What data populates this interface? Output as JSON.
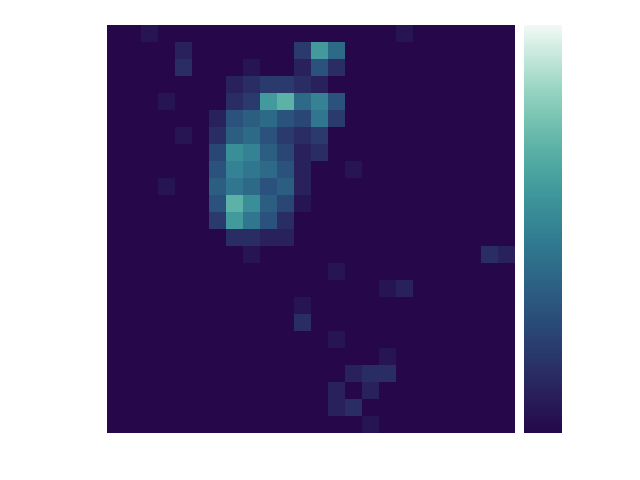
{
  "chart_data": {
    "type": "heatmap",
    "tick_labels": false,
    "colorbar_range": [
      0,
      1
    ],
    "z": [
      [
        0,
        0,
        0.05,
        0,
        0,
        0,
        0,
        0,
        0,
        0,
        0,
        0,
        0,
        0,
        0,
        0,
        0,
        0.05,
        0,
        0,
        0,
        0,
        0,
        0
      ],
      [
        0,
        0,
        0,
        0,
        0.1,
        0,
        0,
        0,
        0,
        0,
        0,
        0.2,
        0.6,
        0.4,
        0,
        0,
        0,
        0,
        0,
        0,
        0,
        0,
        0,
        0
      ],
      [
        0,
        0,
        0,
        0,
        0.15,
        0,
        0,
        0,
        0.05,
        0,
        0,
        0.1,
        0.3,
        0.15,
        0,
        0,
        0,
        0,
        0,
        0,
        0,
        0,
        0,
        0
      ],
      [
        0,
        0,
        0,
        0,
        0,
        0,
        0,
        0.1,
        0.15,
        0.2,
        0.2,
        0.15,
        0.1,
        0,
        0,
        0,
        0,
        0,
        0,
        0,
        0,
        0,
        0,
        0
      ],
      [
        0,
        0,
        0,
        0.05,
        0,
        0,
        0,
        0.15,
        0.2,
        0.6,
        0.7,
        0.4,
        0.5,
        0.3,
        0,
        0,
        0,
        0,
        0,
        0,
        0,
        0,
        0,
        0
      ],
      [
        0,
        0,
        0,
        0,
        0,
        0,
        0.1,
        0.3,
        0.35,
        0.4,
        0.3,
        0.25,
        0.45,
        0.2,
        0,
        0,
        0,
        0,
        0,
        0,
        0,
        0,
        0,
        0
      ],
      [
        0,
        0,
        0,
        0,
        0.05,
        0,
        0.15,
        0.35,
        0.4,
        0.3,
        0.2,
        0.15,
        0.2,
        0,
        0,
        0,
        0,
        0,
        0,
        0,
        0,
        0,
        0,
        0
      ],
      [
        0,
        0,
        0,
        0,
        0,
        0,
        0.25,
        0.55,
        0.5,
        0.35,
        0.25,
        0.1,
        0.15,
        0,
        0,
        0,
        0,
        0,
        0,
        0,
        0,
        0,
        0,
        0
      ],
      [
        0,
        0,
        0,
        0,
        0,
        0,
        0.3,
        0.5,
        0.45,
        0.4,
        0.3,
        0.1,
        0,
        0,
        0.05,
        0,
        0,
        0,
        0,
        0,
        0,
        0,
        0,
        0
      ],
      [
        0,
        0,
        0,
        0.05,
        0,
        0,
        0.35,
        0.45,
        0.4,
        0.3,
        0.35,
        0.1,
        0,
        0,
        0,
        0,
        0,
        0,
        0,
        0,
        0,
        0,
        0,
        0
      ],
      [
        0,
        0,
        0,
        0,
        0,
        0,
        0.3,
        0.7,
        0.55,
        0.35,
        0.25,
        0.05,
        0,
        0,
        0,
        0,
        0,
        0,
        0,
        0,
        0,
        0,
        0,
        0
      ],
      [
        0,
        0,
        0,
        0,
        0,
        0,
        0.2,
        0.6,
        0.45,
        0.3,
        0.15,
        0,
        0,
        0,
        0,
        0,
        0,
        0,
        0,
        0,
        0,
        0,
        0,
        0
      ],
      [
        0,
        0,
        0,
        0,
        0,
        0,
        0,
        0.15,
        0.15,
        0.1,
        0.1,
        0,
        0,
        0,
        0,
        0,
        0,
        0,
        0,
        0,
        0,
        0,
        0,
        0
      ],
      [
        0,
        0,
        0,
        0,
        0,
        0,
        0,
        0,
        0.05,
        0,
        0,
        0,
        0,
        0,
        0,
        0,
        0,
        0,
        0,
        0,
        0,
        0,
        0.15,
        0.1
      ],
      [
        0,
        0,
        0,
        0,
        0,
        0,
        0,
        0,
        0,
        0,
        0,
        0,
        0,
        0.05,
        0,
        0,
        0,
        0,
        0,
        0,
        0,
        0,
        0,
        0
      ],
      [
        0,
        0,
        0,
        0,
        0,
        0,
        0,
        0,
        0,
        0,
        0,
        0,
        0,
        0,
        0,
        0,
        0.05,
        0.1,
        0,
        0,
        0,
        0,
        0,
        0
      ],
      [
        0,
        0,
        0,
        0,
        0,
        0,
        0,
        0,
        0,
        0,
        0,
        0.05,
        0,
        0,
        0,
        0,
        0,
        0,
        0,
        0,
        0,
        0,
        0,
        0
      ],
      [
        0,
        0,
        0,
        0,
        0,
        0,
        0,
        0,
        0,
        0,
        0,
        0.15,
        0,
        0,
        0,
        0,
        0,
        0,
        0,
        0,
        0,
        0,
        0,
        0
      ],
      [
        0,
        0,
        0,
        0,
        0,
        0,
        0,
        0,
        0,
        0,
        0,
        0,
        0,
        0.05,
        0,
        0,
        0,
        0,
        0,
        0,
        0,
        0,
        0,
        0
      ],
      [
        0,
        0,
        0,
        0,
        0,
        0,
        0,
        0,
        0,
        0,
        0,
        0,
        0,
        0,
        0,
        0,
        0.05,
        0,
        0,
        0,
        0,
        0,
        0,
        0
      ],
      [
        0,
        0,
        0,
        0,
        0,
        0,
        0,
        0,
        0,
        0,
        0,
        0,
        0,
        0,
        0.1,
        0.15,
        0.15,
        0,
        0,
        0,
        0,
        0,
        0,
        0
      ],
      [
        0,
        0,
        0,
        0,
        0,
        0,
        0,
        0,
        0,
        0,
        0,
        0,
        0,
        0.1,
        0,
        0.1,
        0,
        0,
        0,
        0,
        0,
        0,
        0,
        0
      ],
      [
        0,
        0,
        0,
        0,
        0,
        0,
        0,
        0,
        0,
        0,
        0,
        0,
        0,
        0.1,
        0.15,
        0,
        0,
        0,
        0,
        0,
        0,
        0,
        0,
        0
      ],
      [
        0,
        0,
        0,
        0,
        0,
        0,
        0,
        0,
        0,
        0,
        0,
        0,
        0,
        0,
        0,
        0.05,
        0,
        0,
        0,
        0,
        0,
        0,
        0,
        0
      ]
    ]
  }
}
